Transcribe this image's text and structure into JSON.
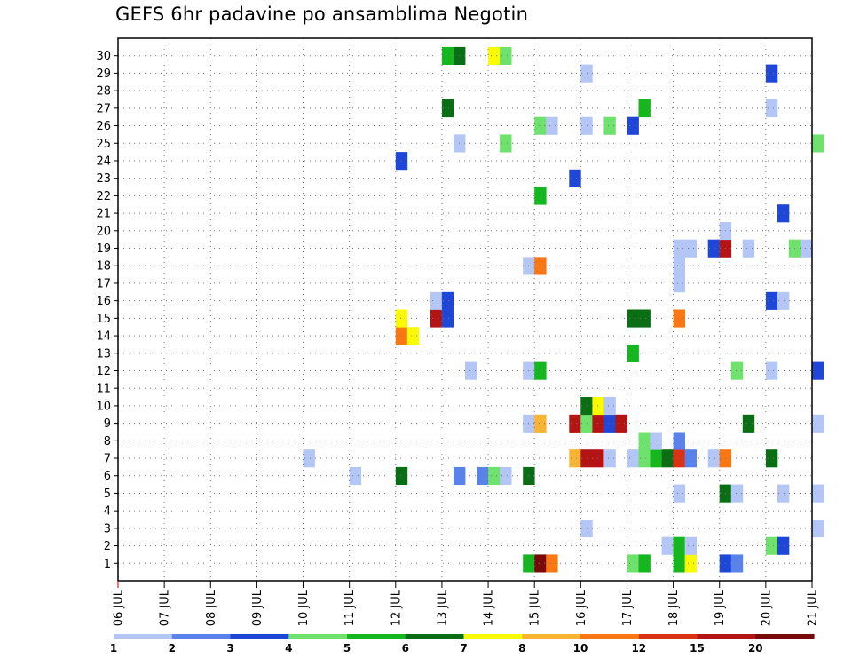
{
  "title": "GEFS 6hr padavine po ansamblima Negotin",
  "chart_data": {
    "type": "heatmap",
    "title": "GEFS 6hr padavine po ansamblima Negotin",
    "x_tick_labels": [
      "06 JUL",
      "07 JUL",
      "08 JUL",
      "09 JUL",
      "10 JUL",
      "11 JUL",
      "12 JUL",
      "13 JUL",
      "14 JUL",
      "15 JUL",
      "16 JUL",
      "17 JUL",
      "18 JUL",
      "19 JUL",
      "20 JUL",
      "21 JUL"
    ],
    "x_step_hours": 6,
    "y_tick_labels": [
      "1",
      "2",
      "3",
      "4",
      "5",
      "6",
      "7",
      "8",
      "9",
      "10",
      "11",
      "12",
      "13",
      "14",
      "15",
      "16",
      "17",
      "18",
      "19",
      "20",
      "21",
      "22",
      "23",
      "24",
      "25",
      "26",
      "27",
      "28",
      "29",
      "30"
    ],
    "grid": true,
    "colorbar": {
      "labels": [
        "1",
        "2",
        "3",
        "4",
        "5",
        "6",
        "7",
        "8",
        "10",
        "12",
        "15",
        "20"
      ],
      "colors": [
        "#b4c6f5",
        "#5a82eb",
        "#1e46d7",
        "#6fe26e",
        "#14b71e",
        "#0a6e14",
        "#fafa00",
        "#fab433",
        "#fa7814",
        "#dc3214",
        "#b41414",
        "#780a0a"
      ]
    },
    "cells": [
      {
        "m": 1,
        "t": "14 JUL 18Z",
        "v": 5
      },
      {
        "m": 1,
        "t": "15 JUL 00Z",
        "v": 20
      },
      {
        "m": 1,
        "t": "15 JUL 06Z",
        "v": 10
      },
      {
        "m": 1,
        "t": "17 JUL 00Z",
        "v": 4
      },
      {
        "m": 1,
        "t": "17 JUL 06Z",
        "v": 5
      },
      {
        "m": 1,
        "t": "18 JUL 00Z",
        "v": 5
      },
      {
        "m": 1,
        "t": "18 JUL 06Z",
        "v": 7
      },
      {
        "m": 1,
        "t": "19 JUL 00Z",
        "v": 3
      },
      {
        "m": 1,
        "t": "19 JUL 06Z",
        "v": 2
      },
      {
        "m": 2,
        "t": "17 JUL 18Z",
        "v": 1
      },
      {
        "m": 2,
        "t": "18 JUL 00Z",
        "v": 5
      },
      {
        "m": 2,
        "t": "18 JUL 06Z",
        "v": 1
      },
      {
        "m": 2,
        "t": "20 JUL 00Z",
        "v": 4
      },
      {
        "m": 2,
        "t": "20 JUL 06Z",
        "v": 3
      },
      {
        "m": 3,
        "t": "16 JUL 00Z",
        "v": 1
      },
      {
        "m": 3,
        "t": "21 JUL 00Z",
        "v": 1
      },
      {
        "m": 5,
        "t": "18 JUL 00Z",
        "v": 1
      },
      {
        "m": 5,
        "t": "19 JUL 00Z",
        "v": 6
      },
      {
        "m": 5,
        "t": "19 JUL 06Z",
        "v": 1
      },
      {
        "m": 5,
        "t": "20 JUL 06Z",
        "v": 1
      },
      {
        "m": 5,
        "t": "21 JUL 00Z",
        "v": 1
      },
      {
        "m": 6,
        "t": "11 JUL 00Z",
        "v": 1
      },
      {
        "m": 6,
        "t": "12 JUL 00Z",
        "v": 6
      },
      {
        "m": 6,
        "t": "13 JUL 06Z",
        "v": 2
      },
      {
        "m": 6,
        "t": "13 JUL 18Z",
        "v": 2
      },
      {
        "m": 6,
        "t": "14 JUL 00Z",
        "v": 4
      },
      {
        "m": 6,
        "t": "14 JUL 06Z",
        "v": 1
      },
      {
        "m": 6,
        "t": "14 JUL 18Z",
        "v": 6
      },
      {
        "m": 7,
        "t": "10 JUL 00Z",
        "v": 1
      },
      {
        "m": 7,
        "t": "15 JUL 18Z",
        "v": 8
      },
      {
        "m": 7,
        "t": "16 JUL 00Z",
        "v": 15
      },
      {
        "m": 7,
        "t": "16 JUL 06Z",
        "v": 15
      },
      {
        "m": 7,
        "t": "16 JUL 12Z",
        "v": 1
      },
      {
        "m": 7,
        "t": "17 JUL 00Z",
        "v": 1
      },
      {
        "m": 7,
        "t": "17 JUL 06Z",
        "v": 4
      },
      {
        "m": 7,
        "t": "17 JUL 12Z",
        "v": 5
      },
      {
        "m": 7,
        "t": "17 JUL 18Z",
        "v": 6
      },
      {
        "m": 7,
        "t": "18 JUL 00Z",
        "v": 12
      },
      {
        "m": 7,
        "t": "18 JUL 06Z",
        "v": 2
      },
      {
        "m": 7,
        "t": "18 JUL 18Z",
        "v": 1
      },
      {
        "m": 7,
        "t": "19 JUL 00Z",
        "v": 10
      },
      {
        "m": 7,
        "t": "20 JUL 00Z",
        "v": 6
      },
      {
        "m": 8,
        "t": "17 JUL 06Z",
        "v": 4
      },
      {
        "m": 8,
        "t": "17 JUL 12Z",
        "v": 1
      },
      {
        "m": 8,
        "t": "18 JUL 00Z",
        "v": 2
      },
      {
        "m": 9,
        "t": "14 JUL 18Z",
        "v": 1
      },
      {
        "m": 9,
        "t": "15 JUL 00Z",
        "v": 8
      },
      {
        "m": 9,
        "t": "15 JUL 18Z",
        "v": 15
      },
      {
        "m": 9,
        "t": "16 JUL 00Z",
        "v": 4
      },
      {
        "m": 9,
        "t": "16 JUL 06Z",
        "v": 15
      },
      {
        "m": 9,
        "t": "16 JUL 12Z",
        "v": 3
      },
      {
        "m": 9,
        "t": "16 JUL 18Z",
        "v": 15
      },
      {
        "m": 9,
        "t": "19 JUL 12Z",
        "v": 6
      },
      {
        "m": 9,
        "t": "21 JUL 00Z",
        "v": 1
      },
      {
        "m": 10,
        "t": "16 JUL 00Z",
        "v": 6
      },
      {
        "m": 10,
        "t": "16 JUL 06Z",
        "v": 7
      },
      {
        "m": 10,
        "t": "16 JUL 12Z",
        "v": 1
      },
      {
        "m": 12,
        "t": "13 JUL 12Z",
        "v": 1
      },
      {
        "m": 12,
        "t": "14 JUL 18Z",
        "v": 1
      },
      {
        "m": 12,
        "t": "15 JUL 00Z",
        "v": 5
      },
      {
        "m": 12,
        "t": "19 JUL 06Z",
        "v": 4
      },
      {
        "m": 12,
        "t": "20 JUL 00Z",
        "v": 1
      },
      {
        "m": 12,
        "t": "21 JUL 00Z",
        "v": 3
      },
      {
        "m": 13,
        "t": "17 JUL 00Z",
        "v": 5
      },
      {
        "m": 14,
        "t": "12 JUL 00Z",
        "v": 10
      },
      {
        "m": 14,
        "t": "12 JUL 06Z",
        "v": 7
      },
      {
        "m": 15,
        "t": "12 JUL 00Z",
        "v": 7
      },
      {
        "m": 15,
        "t": "12 JUL 18Z",
        "v": 15
      },
      {
        "m": 15,
        "t": "13 JUL 00Z",
        "v": 3
      },
      {
        "m": 15,
        "t": "17 JUL 00Z",
        "v": 6
      },
      {
        "m": 15,
        "t": "17 JUL 06Z",
        "v": 6
      },
      {
        "m": 15,
        "t": "18 JUL 00Z",
        "v": 10
      },
      {
        "m": 16,
        "t": "12 JUL 18Z",
        "v": 1
      },
      {
        "m": 16,
        "t": "13 JUL 00Z",
        "v": 3
      },
      {
        "m": 16,
        "t": "20 JUL 00Z",
        "v": 3
      },
      {
        "m": 16,
        "t": "20 JUL 06Z",
        "v": 1
      },
      {
        "m": 17,
        "t": "18 JUL 00Z",
        "v": 1
      },
      {
        "m": 18,
        "t": "14 JUL 18Z",
        "v": 1
      },
      {
        "m": 18,
        "t": "15 JUL 00Z",
        "v": 10
      },
      {
        "m": 18,
        "t": "18 JUL 00Z",
        "v": 1
      },
      {
        "m": 19,
        "t": "18 JUL 00Z",
        "v": 1
      },
      {
        "m": 19,
        "t": "18 JUL 06Z",
        "v": 1
      },
      {
        "m": 19,
        "t": "18 JUL 18Z",
        "v": 3
      },
      {
        "m": 19,
        "t": "19 JUL 00Z",
        "v": 15
      },
      {
        "m": 19,
        "t": "19 JUL 12Z",
        "v": 1
      },
      {
        "m": 19,
        "t": "20 JUL 12Z",
        "v": 4
      },
      {
        "m": 19,
        "t": "20 JUL 18Z",
        "v": 1
      },
      {
        "m": 20,
        "t": "19 JUL 00Z",
        "v": 1
      },
      {
        "m": 21,
        "t": "20 JUL 06Z",
        "v": 3
      },
      {
        "m": 22,
        "t": "15 JUL 00Z",
        "v": 5
      },
      {
        "m": 23,
        "t": "15 JUL 18Z",
        "v": 3
      },
      {
        "m": 24,
        "t": "12 JUL 00Z",
        "v": 3
      },
      {
        "m": 25,
        "t": "13 JUL 06Z",
        "v": 1
      },
      {
        "m": 25,
        "t": "14 JUL 06Z",
        "v": 4
      },
      {
        "m": 25,
        "t": "21 JUL 00Z",
        "v": 4
      },
      {
        "m": 26,
        "t": "15 JUL 00Z",
        "v": 4
      },
      {
        "m": 26,
        "t": "15 JUL 06Z",
        "v": 1
      },
      {
        "m": 26,
        "t": "16 JUL 00Z",
        "v": 1
      },
      {
        "m": 26,
        "t": "16 JUL 12Z",
        "v": 4
      },
      {
        "m": 26,
        "t": "17 JUL 00Z",
        "v": 3
      },
      {
        "m": 27,
        "t": "13 JUL 00Z",
        "v": 6
      },
      {
        "m": 27,
        "t": "17 JUL 06Z",
        "v": 5
      },
      {
        "m": 27,
        "t": "20 JUL 00Z",
        "v": 1
      },
      {
        "m": 29,
        "t": "16 JUL 00Z",
        "v": 1
      },
      {
        "m": 29,
        "t": "20 JUL 00Z",
        "v": 3
      },
      {
        "m": 30,
        "t": "13 JUL 00Z",
        "v": 5
      },
      {
        "m": 30,
        "t": "13 JUL 06Z",
        "v": 6
      },
      {
        "m": 30,
        "t": "14 JUL 00Z",
        "v": 7
      },
      {
        "m": 30,
        "t": "14 JUL 06Z",
        "v": 4
      }
    ]
  }
}
